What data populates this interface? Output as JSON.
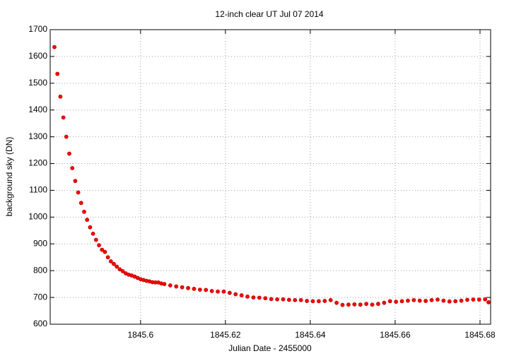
{
  "chart_data": {
    "type": "scatter",
    "title": "12-inch clear UT Jul 07 2014",
    "x_label": "Julian Date - 2455000",
    "y_label": "background sky (DN)",
    "color": "#ff0000",
    "grid": true,
    "xlim": [
      1845.5787,
      1845.6825
    ],
    "ylim": [
      600,
      1700
    ],
    "xticks": [
      1845.6,
      1845.62,
      1845.64,
      1845.66,
      1845.68
    ],
    "yticks": [
      600,
      700,
      800,
      900,
      1000,
      1100,
      1200,
      1300,
      1400,
      1500,
      1600,
      1700
    ],
    "x": [
      1845.5797,
      1845.5804,
      1845.5811,
      1845.5818,
      1845.5825,
      1845.5832,
      1845.5839,
      1845.5846,
      1845.5853,
      1845.586,
      1845.5867,
      1845.5874,
      1845.5881,
      1845.5888,
      1845.5895,
      1845.5902,
      1845.5909,
      1845.5916,
      1845.5923,
      1845.593,
      1845.5937,
      1845.5944,
      1845.5951,
      1845.5958,
      1845.5965,
      1845.5972,
      1845.5979,
      1845.5986,
      1845.5993,
      1845.6,
      1845.6007,
      1845.6014,
      1845.6021,
      1845.6028,
      1845.6035,
      1845.6042,
      1845.6049,
      1845.6056,
      1845.607,
      1845.6084,
      1845.6098,
      1845.6112,
      1845.6126,
      1845.614,
      1845.6154,
      1845.6168,
      1845.6182,
      1845.6196,
      1845.621,
      1845.6224,
      1845.6238,
      1845.6252,
      1845.6266,
      1845.628,
      1845.6294,
      1845.6308,
      1845.6322,
      1845.6336,
      1845.635,
      1845.6364,
      1845.6378,
      1845.6392,
      1845.6406,
      1845.642,
      1845.6434,
      1845.6448,
      1845.6462,
      1845.6476,
      1845.649,
      1845.6504,
      1845.6518,
      1845.6532,
      1845.6546,
      1845.656,
      1845.6574,
      1845.6588,
      1845.6602,
      1845.6616,
      1845.663,
      1845.6644,
      1845.6658,
      1845.6672,
      1845.6686,
      1845.67,
      1845.6714,
      1845.6728,
      1845.6742,
      1845.6756,
      1845.677,
      1845.6784,
      1845.6798,
      1845.6812,
      1845.682
    ],
    "values": [
      1635,
      1535,
      1450,
      1372,
      1300,
      1237,
      1183,
      1135,
      1092,
      1053,
      1020,
      990,
      962,
      938,
      915,
      895,
      878,
      870,
      850,
      835,
      825,
      815,
      805,
      798,
      790,
      785,
      782,
      778,
      773,
      768,
      765,
      762,
      760,
      757,
      756,
      756,
      752,
      750,
      745,
      741,
      738,
      735,
      732,
      729,
      728,
      724,
      722,
      722,
      717,
      712,
      708,
      703,
      700,
      699,
      697,
      694,
      693,
      693,
      691,
      690,
      690,
      687,
      686,
      686,
      687,
      690,
      680,
      672,
      673,
      674,
      673,
      676,
      673,
      676,
      680,
      686,
      684,
      686,
      688,
      690,
      688,
      687,
      690,
      692,
      688,
      685,
      686,
      688,
      691,
      692,
      692,
      693,
      682
    ]
  }
}
